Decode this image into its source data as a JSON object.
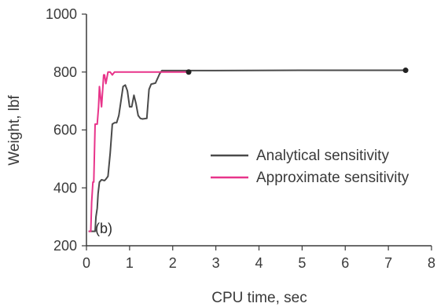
{
  "chart_data": {
    "type": "line",
    "title": "",
    "panel_label": "(b)",
    "xlabel": "CPU time, sec",
    "ylabel": "Weight, lbf",
    "xlim": [
      0,
      8
    ],
    "ylim": [
      200,
      1000
    ],
    "xticks": [
      "0",
      "1",
      "2",
      "3",
      "4",
      "5",
      "6",
      "7",
      "8"
    ],
    "yticks": [
      "200",
      "400",
      "600",
      "800",
      "1000"
    ],
    "grid": false,
    "legend_position": "center-right",
    "series": [
      {
        "name": "Analytical sensitivity",
        "color": "#4a4a4a",
        "end_marker": true,
        "points": [
          [
            0.05,
            250
          ],
          [
            0.2,
            250
          ],
          [
            0.22,
            300
          ],
          [
            0.25,
            330
          ],
          [
            0.27,
            380
          ],
          [
            0.3,
            420
          ],
          [
            0.35,
            428
          ],
          [
            0.42,
            425
          ],
          [
            0.45,
            430
          ],
          [
            0.5,
            440
          ],
          [
            0.55,
            520
          ],
          [
            0.6,
            620
          ],
          [
            0.65,
            625
          ],
          [
            0.7,
            625
          ],
          [
            0.75,
            650
          ],
          [
            0.8,
            700
          ],
          [
            0.85,
            750
          ],
          [
            0.9,
            755
          ],
          [
            0.95,
            735
          ],
          [
            1.0,
            680
          ],
          [
            1.05,
            680
          ],
          [
            1.1,
            720
          ],
          [
            1.15,
            690
          ],
          [
            1.2,
            650
          ],
          [
            1.25,
            640
          ],
          [
            1.3,
            638
          ],
          [
            1.4,
            640
          ],
          [
            1.45,
            740
          ],
          [
            1.5,
            758
          ],
          [
            1.55,
            760
          ],
          [
            1.6,
            762
          ],
          [
            1.7,
            795
          ],
          [
            1.75,
            805
          ],
          [
            2.0,
            805
          ],
          [
            3.0,
            805
          ],
          [
            5.0,
            806
          ],
          [
            7.4,
            806
          ]
        ]
      },
      {
        "name": "Approximate sensitivity",
        "color": "#e8348a",
        "end_marker": true,
        "points": [
          [
            0.05,
            250
          ],
          [
            0.1,
            250
          ],
          [
            0.12,
            350
          ],
          [
            0.15,
            420
          ],
          [
            0.17,
            420
          ],
          [
            0.2,
            620
          ],
          [
            0.25,
            620
          ],
          [
            0.28,
            680
          ],
          [
            0.3,
            750
          ],
          [
            0.35,
            680
          ],
          [
            0.4,
            790
          ],
          [
            0.42,
            790
          ],
          [
            0.45,
            760
          ],
          [
            0.5,
            800
          ],
          [
            0.55,
            800
          ],
          [
            0.6,
            790
          ],
          [
            0.65,
            800
          ],
          [
            1.0,
            800
          ],
          [
            2.0,
            800
          ],
          [
            2.37,
            800
          ]
        ]
      }
    ]
  }
}
